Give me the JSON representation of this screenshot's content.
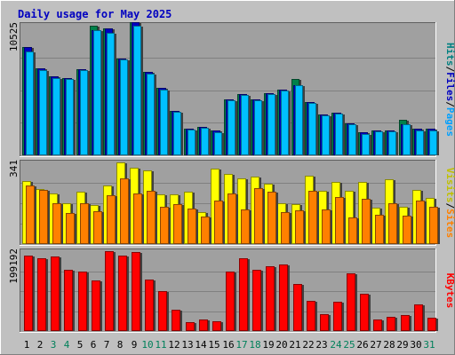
{
  "chart_data": {
    "type": "bar",
    "title": "Daily usage for May 2025",
    "categories": [
      "1",
      "2",
      "3",
      "4",
      "5",
      "6",
      "7",
      "8",
      "9",
      "10",
      "11",
      "12",
      "13",
      "14",
      "15",
      "16",
      "17",
      "18",
      "19",
      "20",
      "21",
      "22",
      "23",
      "24",
      "25",
      "26",
      "27",
      "28",
      "29",
      "30",
      "31"
    ],
    "weekend_days": [
      "3",
      "4",
      "10",
      "11",
      "17",
      "18",
      "24",
      "25",
      "31"
    ],
    "panels": [
      {
        "max_label": "10525",
        "ymax": 10525,
        "side_labels": [
          {
            "text": "Hits",
            "color": "#008080"
          },
          {
            "text": "/",
            "color": "#000000"
          },
          {
            "text": "Files",
            "color": "#0000c0"
          },
          {
            "text": "/",
            "color": "#000000"
          },
          {
            "text": "Pages",
            "color": "#00a0ff"
          }
        ],
        "series": [
          {
            "name": "Hits",
            "color": "#00804a",
            "values": [
              8710,
              7000,
              6340,
              6230,
              6940,
              10420,
              10210,
              7840,
              10730,
              6700,
              5410,
              3590,
              2150,
              2320,
              1980,
              4510,
              4940,
              4510,
              5040,
              5320,
              6190,
              4310,
              3290,
              3450,
              2590,
              1830,
              2040,
              2040,
              2860,
              2130,
              2130
            ]
          },
          {
            "name": "Files",
            "color": "#0000c0",
            "values": [
              8710,
              7000,
              6340,
              6230,
              6940,
              10130,
              10210,
              7840,
              10730,
              6700,
              5410,
              3590,
              2150,
              2320,
              1980,
              4510,
              4940,
              4510,
              5040,
              5320,
              5690,
              4310,
              3290,
              3450,
              2590,
              1830,
              2040,
              2040,
              2520,
              2130,
              2130
            ]
          },
          {
            "name": "Pages",
            "color": "#00c0ff",
            "values": [
              8410,
              6900,
              6240,
              6130,
              6840,
              10130,
              9910,
              7740,
              10430,
              6600,
              5310,
              3490,
              2050,
              2220,
              1880,
              4410,
              4840,
              4410,
              4940,
              5220,
              5690,
              4210,
              3190,
              3350,
              2490,
              1730,
              1940,
              1940,
              2520,
              2030,
              2030
            ]
          }
        ]
      },
      {
        "max_label": "341",
        "ymax": 341,
        "side_labels": [
          {
            "text": "Visits",
            "color": "#c0c000"
          },
          {
            "text": "/",
            "color": "#000000"
          },
          {
            "text": "Sites",
            "color": "#ff8000"
          }
        ],
        "series": [
          {
            "name": "Visits",
            "color": "#ffff00",
            "values": [
              262,
              228,
              213,
              171,
              218,
              162,
              245,
              341,
              318,
              307,
              206,
              209,
              217,
              132,
              316,
              294,
              273,
              282,
              252,
              169,
              168,
              285,
              221,
              260,
              223,
              259,
              153,
              271,
              155,
              225,
              194
            ]
          },
          {
            "name": "Sites",
            "color": "#ff8000",
            "values": [
              243,
              226,
              172,
              130,
              171,
              136,
              204,
              275,
              212,
              223,
              154,
              168,
              150,
              115,
              183,
              213,
              145,
              234,
              217,
              132,
              139,
              221,
              144,
              198,
              113,
              190,
              122,
              170,
              117,
              180,
              154
            ]
          }
        ]
      },
      {
        "max_label": "199192",
        "ymax": 199192,
        "side_labels": [
          {
            "text": "KBytes",
            "color": "#ff0000"
          }
        ],
        "series": [
          {
            "name": "KBytes",
            "color": "#ff0000",
            "values": [
              187700,
              181000,
              185200,
              153500,
              147800,
              126800,
              198100,
              188600,
              197600,
              128300,
              99400,
              53600,
              22800,
              28300,
              24500,
              149200,
              180700,
              153600,
              161200,
              165700,
              116900,
              75300,
              42100,
              73900,
              143000,
              92700,
              27800,
              34400,
              38900,
              67000,
              34000
            ]
          }
        ]
      }
    ]
  }
}
